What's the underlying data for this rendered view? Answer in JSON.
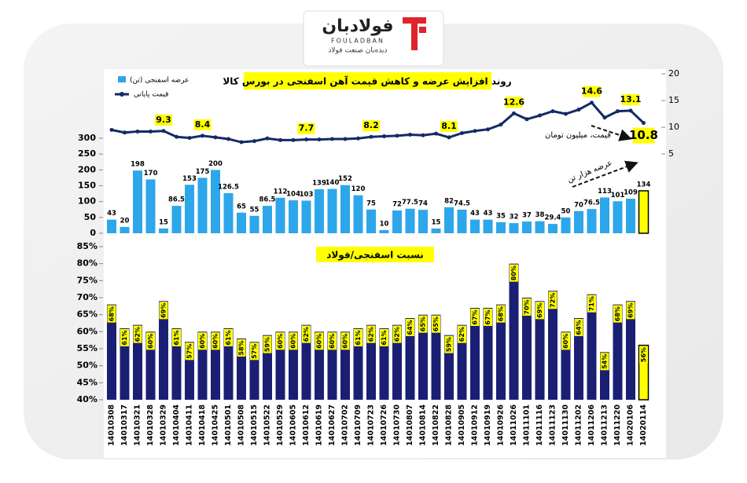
{
  "logo": {
    "name": "فولادبان",
    "latin": "FOULADBAN",
    "tagline": "دیده‌بان صنعت فولاد"
  },
  "chart_data": [
    {
      "type": "bar",
      "title": "روند افزایش عرضه و کاهش قیمت آهن اسفنجی در بورس کالا",
      "annotations": [
        "قیمت، میلیون تومان",
        "عرضه هزار تن"
      ],
      "ylim": [
        0,
        300
      ],
      "yticks": [
        0,
        50,
        100,
        150,
        200,
        250,
        300
      ],
      "y2lim": [
        5,
        20
      ],
      "y2ticks": [
        5,
        10,
        15,
        20
      ],
      "legend": "top-left",
      "series": [
        {
          "name": "عرضه اسفنجی (تن)",
          "type": "bar",
          "color": "#2ea6ea",
          "colors": [
            "#2ea6ea",
            "#2ea6ea",
            "#2ea6ea",
            "#2ea6ea",
            "#2ea6ea",
            "#2ea6ea",
            "#2ea6ea",
            "#2ea6ea",
            "#2ea6ea",
            "#2ea6ea",
            "#2ea6ea",
            "#2ea6ea",
            "#2ea6ea",
            "#2ea6ea",
            "#2ea6ea",
            "#2ea6ea",
            "#2ea6ea",
            "#2ea6ea",
            "#2ea6ea",
            "#2ea6ea",
            "#2ea6ea",
            "#2ea6ea",
            "#2ea6ea",
            "#2ea6ea",
            "#2ea6ea",
            "#2ea6ea",
            "#2ea6ea",
            "#2ea6ea",
            "#2ea6ea",
            "#2ea6ea",
            "#2ea6ea",
            "#2ea6ea",
            "#2ea6ea",
            "#2ea6ea",
            "#2ea6ea",
            "#2ea6ea",
            "#2ea6ea",
            "#2ea6ea",
            "#2ea6ea",
            "#2ea6ea",
            "#2ea6ea",
            "#ffff00"
          ],
          "values": [
            43,
            20,
            198,
            170,
            15,
            86.5,
            153,
            175,
            200,
            126.5,
            65,
            55,
            86.5,
            112,
            104,
            103,
            139,
            140,
            152,
            120,
            75,
            10,
            72,
            77.5,
            74,
            15,
            82,
            74.5,
            43,
            43,
            35,
            32,
            37,
            38,
            29.4,
            50,
            70,
            76.5,
            113,
            101,
            109,
            134
          ]
        },
        {
          "name": "قیمت پایانی",
          "type": "line",
          "axis": "y2",
          "color": "#142a66",
          "values": [
            9.5,
            9.0,
            9.2,
            9.2,
            9.3,
            8.2,
            8.0,
            8.4,
            8.1,
            7.8,
            7.2,
            7.4,
            7.9,
            7.6,
            7.6,
            7.7,
            7.7,
            7.8,
            7.8,
            7.9,
            8.2,
            8.3,
            8.4,
            8.6,
            8.5,
            8.8,
            8.1,
            8.9,
            9.3,
            9.6,
            10.5,
            12.6,
            11.5,
            12.2,
            13.0,
            12.5,
            13.3,
            14.6,
            11.8,
            13.0,
            13.1,
            10.8
          ],
          "value_labels": [
            null,
            null,
            null,
            null,
            "9.3",
            null,
            null,
            "8.4",
            null,
            null,
            null,
            null,
            null,
            null,
            null,
            "7.7",
            null,
            null,
            null,
            null,
            "8.2",
            null,
            null,
            null,
            null,
            null,
            "8.1",
            null,
            null,
            null,
            null,
            "12.6",
            null,
            null,
            null,
            null,
            null,
            "14.6",
            null,
            null,
            "13.1",
            "10.8"
          ]
        }
      ]
    },
    {
      "type": "bar",
      "title": "نسبت اسفنجی/فولاد",
      "categories": [
        "14010308",
        "14010317",
        "14010321",
        "14010328",
        "14010329",
        "14010404",
        "14010411",
        "14010418",
        "14010425",
        "14010501",
        "14010508",
        "14010515",
        "14010522",
        "14010529",
        "14010605",
        "14010612",
        "14010619",
        "14010627",
        "14010702",
        "14010709",
        "14010723",
        "14010726",
        "14010730",
        "14010807",
        "14010814",
        "14010822",
        "14010828",
        "14010905",
        "14010912",
        "14010919",
        "14010926",
        "14011026",
        "14011101",
        "14011116",
        "14011123",
        "14011130",
        "14011202",
        "14011206",
        "14011213",
        "14011220",
        "14020106",
        "14020114"
      ],
      "ylim": [
        40,
        85
      ],
      "yticks": [
        {
          "value": 40,
          "label": "40%"
        },
        {
          "value": 45,
          "label": "45%"
        },
        {
          "value": 50,
          "label": "50%"
        },
        {
          "value": 55,
          "label": "55%"
        },
        {
          "value": 60,
          "label": "60%"
        },
        {
          "value": 65,
          "label": "65%"
        },
        {
          "value": 70,
          "label": "70%"
        },
        {
          "value": 75,
          "label": "75%"
        },
        {
          "value": 80,
          "label": "80%"
        },
        {
          "value": 85,
          "label": "85%"
        }
      ],
      "color": "#1b1f73",
      "colors": [
        "#1b1f73",
        "#1b1f73",
        "#1b1f73",
        "#1b1f73",
        "#1b1f73",
        "#1b1f73",
        "#1b1f73",
        "#1b1f73",
        "#1b1f73",
        "#1b1f73",
        "#1b1f73",
        "#1b1f73",
        "#1b1f73",
        "#1b1f73",
        "#1b1f73",
        "#1b1f73",
        "#1b1f73",
        "#1b1f73",
        "#1b1f73",
        "#1b1f73",
        "#1b1f73",
        "#1b1f73",
        "#1b1f73",
        "#1b1f73",
        "#1b1f73",
        "#1b1f73",
        "#1b1f73",
        "#1b1f73",
        "#1b1f73",
        "#1b1f73",
        "#1b1f73",
        "#1b1f73",
        "#1b1f73",
        "#1b1f73",
        "#1b1f73",
        "#1b1f73",
        "#1b1f73",
        "#1b1f73",
        "#1b1f73",
        "#1b1f73",
        "#1b1f73",
        "#ffff00"
      ],
      "values": [
        68,
        61,
        62,
        60,
        69,
        61,
        57,
        60,
        60,
        61,
        58,
        57,
        59,
        60,
        60,
        62,
        60,
        60,
        60,
        61,
        62,
        61,
        62,
        64,
        65,
        65,
        59,
        62,
        67,
        67,
        68,
        80,
        70,
        69,
        72,
        60,
        64,
        71,
        54,
        68,
        69,
        56
      ],
      "value_labels": [
        "68%",
        "61%",
        "62%",
        "60%",
        "69%",
        "61%",
        "57%",
        "60%",
        "60%",
        "61%",
        "58%",
        "57%",
        "59%",
        "60%",
        "60%",
        "62%",
        "60%",
        "60%",
        "60%",
        "61%",
        "62%",
        "61%",
        "62%",
        "64%",
        "65%",
        "65%",
        "59%",
        "62%",
        "67%",
        "67%",
        "68%",
        "80%",
        "70%",
        "69%",
        "72%",
        "60%",
        "64%",
        "71%",
        "54%",
        "68%",
        "69%",
        "56%"
      ]
    }
  ]
}
